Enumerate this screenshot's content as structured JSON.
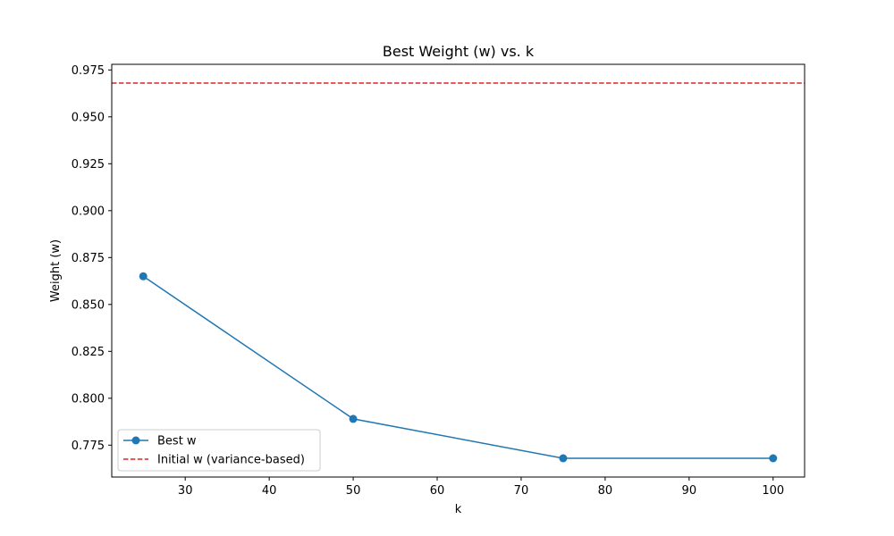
{
  "chart_data": {
    "type": "line",
    "title": "Best Weight (w) vs. k",
    "xlabel": "k",
    "ylabel": "Weight (w)",
    "xlim": [
      21.25,
      103.75
    ],
    "ylim": [
      0.758,
      0.978
    ],
    "xticks": [
      30,
      40,
      50,
      60,
      70,
      80,
      90,
      100
    ],
    "yticks": [
      0.775,
      0.8,
      0.825,
      0.85,
      0.875,
      0.9,
      0.925,
      0.95,
      0.975
    ],
    "grid": false,
    "legend_position": "lower-left",
    "series": [
      {
        "name": "Best w",
        "style": "solid-with-markers",
        "color": "#1f77b4",
        "x": [
          25,
          50,
          75,
          100
        ],
        "y": [
          0.865,
          0.789,
          0.768,
          0.768
        ]
      }
    ],
    "reference_lines": [
      {
        "name": "Initial w (variance-based)",
        "orientation": "horizontal",
        "style": "dashed",
        "color": "#d62728",
        "y": 0.968
      }
    ]
  }
}
